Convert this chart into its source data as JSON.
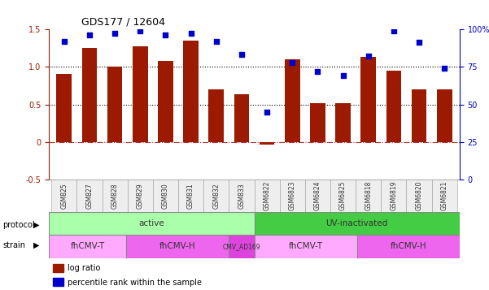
{
  "title": "GDS177 / 12604",
  "samples": [
    "GSM825",
    "GSM827",
    "GSM828",
    "GSM829",
    "GSM830",
    "GSM831",
    "GSM832",
    "GSM833",
    "GSM6822",
    "GSM6823",
    "GSM6824",
    "GSM6825",
    "GSM6818",
    "GSM6819",
    "GSM6820",
    "GSM6821"
  ],
  "log_ratio": [
    0.9,
    1.25,
    1.0,
    1.27,
    1.08,
    1.35,
    0.7,
    0.63,
    -0.03,
    1.1,
    0.52,
    0.52,
    1.13,
    0.95,
    0.7,
    0.7
  ],
  "pct_rank": [
    0.92,
    0.96,
    0.97,
    0.99,
    0.96,
    0.97,
    0.92,
    0.83,
    0.45,
    0.78,
    0.72,
    0.69,
    0.82,
    0.99,
    0.91,
    0.74
  ],
  "bar_color": "#9B1A00",
  "dot_color": "#0000CC",
  "ylim_left": [
    -0.5,
    1.5
  ],
  "ylim_right": [
    0,
    100
  ],
  "yticks_left": [
    -0.5,
    0,
    0.5,
    1.0,
    1.5
  ],
  "yticks_right": [
    0,
    25,
    50,
    75,
    100
  ],
  "ytick_labels_right": [
    "0",
    "25",
    "50",
    "75",
    "100%"
  ],
  "hlines": [
    0.0,
    0.5,
    1.0
  ],
  "hline_styles": [
    "dashdot",
    "dotted",
    "dotted"
  ],
  "protocol_groups": [
    {
      "label": "active",
      "start": 0,
      "end": 8,
      "color": "#AAFFAA"
    },
    {
      "label": "UV-inactivated",
      "start": 8,
      "end": 16,
      "color": "#44CC44"
    }
  ],
  "strain_groups": [
    {
      "label": "fhCMV-T",
      "start": 0,
      "end": 3,
      "color": "#FFAAFF"
    },
    {
      "label": "fhCMV-H",
      "start": 3,
      "end": 7,
      "color": "#EE66EE"
    },
    {
      "label": "CMV_AD169",
      "start": 7,
      "end": 8,
      "color": "#DD44DD"
    },
    {
      "label": "fhCMV-T",
      "start": 8,
      "end": 12,
      "color": "#FFAAFF"
    },
    {
      "label": "fhCMV-H",
      "start": 12,
      "end": 16,
      "color": "#EE66EE"
    }
  ],
  "legend_items": [
    {
      "label": "log ratio",
      "color": "#9B1A00"
    },
    {
      "label": "percentile rank within the sample",
      "color": "#0000CC"
    }
  ],
  "xlabel_rotation": 90,
  "tick_label_color": "#555555",
  "left_axis_color": "#9B1A00",
  "right_axis_color": "#0000CC"
}
